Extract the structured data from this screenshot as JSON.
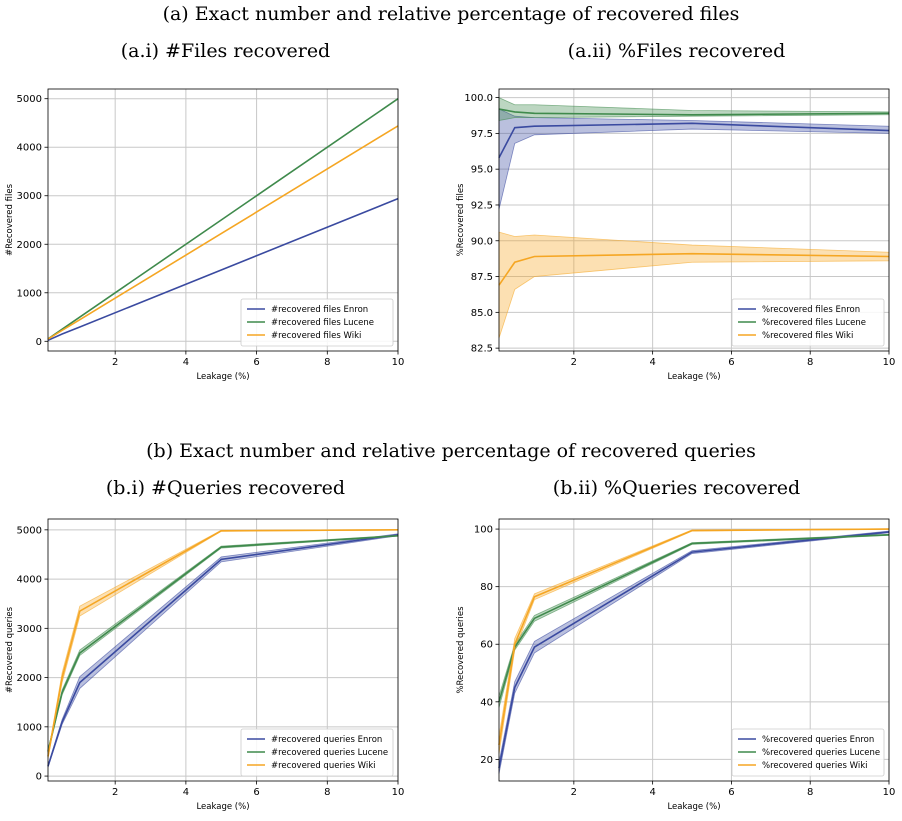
{
  "headings": {
    "a": "(a) Exact number and relative percentage of recovered files",
    "ai": "(a.i) #Files recovered",
    "aii": "(a.ii) %Files recovered",
    "b": "(b) Exact number and relative percentage of recovered queries",
    "bi": "(b.i) #Queries recovered",
    "bii": "(b.ii) %Queries recovered"
  },
  "colors": {
    "enron": "#3a4aa0",
    "lucene": "#3f8a4c",
    "wiki": "#f5a623"
  },
  "chart_data": [
    {
      "id": "ai",
      "type": "line",
      "xlabel": "Leakage (%)",
      "ylabel": "#Recovered files",
      "xlim": [
        0.1,
        10
      ],
      "ylim": [
        -200,
        5200
      ],
      "xticks": [
        2,
        4,
        6,
        8,
        10
      ],
      "yticks": [
        0,
        1000,
        2000,
        3000,
        4000,
        5000
      ],
      "grid": true,
      "legend_position": "lower-right",
      "series": [
        {
          "name": "#recovered files Enron",
          "color": "#3a4aa0",
          "x": [
            0.1,
            0.5,
            1,
            5,
            10
          ],
          "y": [
            20,
            150,
            295,
            1470,
            2940
          ]
        },
        {
          "name": "#recovered files Lucene",
          "color": "#3f8a4c",
          "x": [
            0.1,
            0.5,
            1,
            5,
            10
          ],
          "y": [
            50,
            250,
            500,
            2500,
            5000
          ]
        },
        {
          "name": "#recovered files Wiki",
          "color": "#f5a623",
          "x": [
            0.1,
            0.5,
            1,
            5,
            10
          ],
          "y": [
            45,
            225,
            445,
            2220,
            4440
          ]
        }
      ]
    },
    {
      "id": "aii",
      "type": "line",
      "xlabel": "Leakage (%)",
      "ylabel": "%Recovered files",
      "xlim": [
        0.1,
        10
      ],
      "ylim": [
        82.3,
        100.6
      ],
      "xticks": [
        2,
        4,
        6,
        8,
        10
      ],
      "yticks": [
        82.5,
        85.0,
        87.5,
        90.0,
        92.5,
        95.0,
        97.5,
        100.0
      ],
      "ytick_labels": [
        "82.5",
        "85.0",
        "87.5",
        "90.0",
        "92.5",
        "95.0",
        "97.5",
        "100.0"
      ],
      "grid": true,
      "legend_position": "lower-right",
      "series": [
        {
          "name": "%recovered files Enron",
          "color": "#3a4aa0",
          "x": [
            0.1,
            0.5,
            1,
            5,
            10
          ],
          "y": [
            95.8,
            97.9,
            98.0,
            98.2,
            97.7
          ],
          "lower": [
            92.2,
            96.8,
            97.4,
            97.8,
            97.5
          ],
          "upper": [
            99.2,
            98.7,
            98.6,
            98.4,
            98.0
          ]
        },
        {
          "name": "%recovered files Lucene",
          "color": "#3f8a4c",
          "x": [
            0.1,
            0.5,
            1,
            5,
            10
          ],
          "y": [
            99.2,
            99.0,
            98.9,
            98.8,
            98.9
          ],
          "lower": [
            98.4,
            98.6,
            98.6,
            98.7,
            98.8
          ],
          "upper": [
            100.0,
            99.5,
            99.5,
            99.1,
            99.0
          ]
        },
        {
          "name": "%recovered files Wiki",
          "color": "#f5a623",
          "x": [
            0.1,
            0.5,
            1,
            5,
            10
          ],
          "y": [
            86.9,
            88.5,
            88.9,
            89.1,
            88.9
          ],
          "lower": [
            83.2,
            86.6,
            87.5,
            88.5,
            88.6
          ],
          "upper": [
            90.6,
            90.3,
            90.4,
            89.7,
            89.2
          ]
        }
      ]
    },
    {
      "id": "bi",
      "type": "line",
      "xlabel": "Leakage (%)",
      "ylabel": "#Recovered queries",
      "xlim": [
        0.1,
        10
      ],
      "ylim": [
        -100,
        5220
      ],
      "xticks": [
        2,
        4,
        6,
        8,
        10
      ],
      "yticks": [
        0,
        1000,
        2000,
        3000,
        4000,
        5000
      ],
      "grid": true,
      "legend_position": "lower-right",
      "series": [
        {
          "name": "#recovered queries Enron",
          "color": "#3a4aa0",
          "x": [
            0.1,
            0.5,
            1,
            5,
            10
          ],
          "y": [
            200,
            1100,
            1900,
            4400,
            4900
          ],
          "lower": [
            180,
            1050,
            1780,
            4350,
            4880
          ],
          "upper": [
            220,
            1150,
            2020,
            4450,
            4920
          ]
        },
        {
          "name": "#recovered queries Lucene",
          "color": "#3f8a4c",
          "x": [
            0.1,
            0.5,
            1,
            5,
            10
          ],
          "y": [
            500,
            1700,
            2500,
            4650,
            4880
          ],
          "lower": [
            470,
            1650,
            2450,
            4630,
            4870
          ],
          "upper": [
            530,
            1750,
            2560,
            4670,
            4890
          ]
        },
        {
          "name": "#recovered queries Wiki",
          "color": "#f5a623",
          "x": [
            0.1,
            0.5,
            1,
            5,
            10
          ],
          "y": [
            400,
            2000,
            3350,
            4980,
            5000
          ],
          "lower": [
            360,
            1900,
            3250,
            4970,
            4995
          ],
          "upper": [
            440,
            2100,
            3450,
            4990,
            5005
          ]
        }
      ]
    },
    {
      "id": "bii",
      "type": "line",
      "xlabel": "Leakage (%)",
      "ylabel": "%Recovered queries",
      "xlim": [
        0.1,
        10
      ],
      "ylim": [
        12.5,
        103.5
      ],
      "xticks": [
        2,
        4,
        6,
        8,
        10
      ],
      "yticks": [
        20,
        40,
        60,
        80,
        100
      ],
      "grid": true,
      "legend_position": "lower-right",
      "series": [
        {
          "name": "%recovered queries Enron",
          "color": "#3a4aa0",
          "x": [
            0.1,
            0.5,
            1,
            5,
            10
          ],
          "y": [
            17,
            45,
            59,
            92,
            99
          ],
          "lower": [
            15,
            43,
            57,
            91.5,
            98.7
          ],
          "upper": [
            19,
            47,
            61,
            92.5,
            99.3
          ]
        },
        {
          "name": "%recovered queries Lucene",
          "color": "#3f8a4c",
          "x": [
            0.1,
            0.5,
            1,
            5,
            10
          ],
          "y": [
            40,
            59,
            69,
            95,
            98
          ],
          "lower": [
            38,
            58,
            68,
            94.7,
            97.8
          ],
          "upper": [
            42,
            60,
            70,
            95.3,
            98.2
          ]
        },
        {
          "name": "%recovered queries Wiki",
          "color": "#f5a623",
          "x": [
            0.1,
            0.5,
            1,
            5,
            10
          ],
          "y": [
            25,
            60,
            76.5,
            99.5,
            100
          ],
          "lower": [
            22,
            58,
            75.5,
            99.3,
            99.9
          ],
          "upper": [
            28,
            62,
            77.5,
            99.7,
            100.1
          ]
        }
      ]
    }
  ]
}
